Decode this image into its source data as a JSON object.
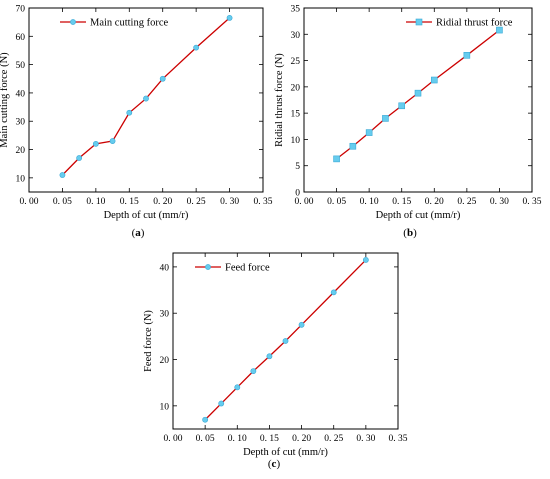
{
  "colors": {
    "line": "#cc0000",
    "marker": "#66ccee",
    "marker_edge": "#3aa9d6",
    "axis": "#000000"
  },
  "chart_data": [
    {
      "panel": "(a)",
      "type": "line",
      "xlabel": "Depth of cut (mm/r)",
      "ylabel": "Main cutting force (N)",
      "xlim": [
        0.0,
        0.35
      ],
      "ylim": [
        5,
        70
      ],
      "xticks": [
        0.0,
        0.05,
        0.1,
        0.15,
        0.2,
        0.25,
        0.3,
        0.35
      ],
      "xtick_labels": [
        "0. 00",
        "0. 05",
        "0. 10",
        "0. 15",
        "0. 20",
        "0. 25",
        "0. 30",
        "0. 35"
      ],
      "yticks": [
        10,
        20,
        30,
        40,
        50,
        60,
        70
      ],
      "ytick_labels": [
        "10",
        "20",
        "30",
        "40",
        "50",
        "60",
        "70"
      ],
      "legend": "top-left",
      "series": [
        {
          "name": "Main cutting force",
          "marker": "circle",
          "x": [
            0.05,
            0.075,
            0.1,
            0.125,
            0.15,
            0.175,
            0.2,
            0.25,
            0.3
          ],
          "y": [
            11,
            17,
            22,
            23,
            33,
            38,
            45,
            56,
            66.5
          ]
        }
      ]
    },
    {
      "panel": "(b)",
      "type": "line",
      "xlabel": "Depth of cut (mm/r)",
      "ylabel": "Ridial thrust force (N)",
      "xlim": [
        0.0,
        0.35
      ],
      "ylim": [
        0,
        35
      ],
      "xticks": [
        0.0,
        0.05,
        0.1,
        0.15,
        0.2,
        0.25,
        0.3,
        0.35
      ],
      "xtick_labels": [
        "0. 00",
        "0. 05",
        "0. 10",
        "0. 15",
        "0. 20",
        "0. 25",
        "0. 30",
        "0. 35"
      ],
      "yticks": [
        0,
        5,
        10,
        15,
        20,
        25,
        30,
        35
      ],
      "ytick_labels": [
        "0",
        "5",
        "10",
        "15",
        "20",
        "25",
        "30",
        "35"
      ],
      "legend": "top-right",
      "series": [
        {
          "name": "Ridial thrust force",
          "marker": "square",
          "x": [
            0.05,
            0.075,
            0.1,
            0.125,
            0.15,
            0.175,
            0.2,
            0.25,
            0.3
          ],
          "y": [
            6.3,
            8.7,
            11.3,
            14,
            16.4,
            18.8,
            21.3,
            26,
            30.8
          ]
        }
      ]
    },
    {
      "panel": "(c)",
      "type": "line",
      "xlabel": "Depth of cut (mm/r)",
      "ylabel": "Feed force (N)",
      "xlim": [
        0.0,
        0.35
      ],
      "ylim": [
        5,
        43
      ],
      "xticks": [
        0.0,
        0.05,
        0.1,
        0.15,
        0.2,
        0.25,
        0.3,
        0.35
      ],
      "xtick_labels": [
        "0. 00",
        "0. 05",
        "0. 10",
        "0. 15",
        "0. 20",
        "0. 25",
        "0. 30",
        "0. 35"
      ],
      "yticks": [
        10,
        20,
        30,
        40
      ],
      "ytick_labels": [
        "10",
        "20",
        "30",
        "40"
      ],
      "legend": "top-left",
      "series": [
        {
          "name": "Feed force",
          "marker": "circle",
          "x": [
            0.05,
            0.075,
            0.1,
            0.125,
            0.15,
            0.175,
            0.2,
            0.25,
            0.3
          ],
          "y": [
            7,
            10.5,
            14,
            17.5,
            20.7,
            24,
            27.5,
            34.5,
            41.5
          ]
        }
      ]
    }
  ]
}
